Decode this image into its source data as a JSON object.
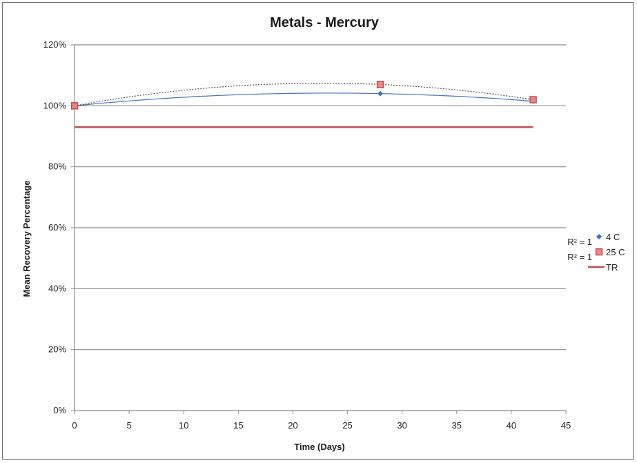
{
  "chart_data": {
    "type": "scatter",
    "title": "Metals - Mercury",
    "xlabel": "Time (Days)",
    "ylabel": "Mean Recovery Percentage",
    "xlim": [
      0,
      45
    ],
    "ylim": [
      0,
      1.2
    ],
    "xticks": [
      0,
      5,
      10,
      15,
      20,
      25,
      30,
      35,
      40,
      45
    ],
    "yticks": [
      0,
      0.2,
      0.4,
      0.6,
      0.8,
      1.0,
      1.2
    ],
    "ytick_labels": [
      "0%",
      "20%",
      "40%",
      "60%",
      "80%",
      "100%",
      "120%"
    ],
    "grid": "horizontal",
    "legend_position": "right",
    "series": [
      {
        "name": "4 C",
        "marker": "diamond",
        "color": "#4472c4",
        "x": [
          0,
          28,
          42
        ],
        "y": [
          1.0,
          1.04,
          1.015
        ],
        "trendline": {
          "type": "polynomial",
          "color": "#4472c4",
          "style": "solid",
          "r2_label": "R² = 1"
        }
      },
      {
        "name": "25 C",
        "marker": "square",
        "color": "#c0504d",
        "x": [
          0,
          28,
          42
        ],
        "y": [
          1.0,
          1.07,
          1.02
        ],
        "trendline": {
          "type": "polynomial",
          "color": "#555555",
          "style": "dotted",
          "r2_label": "R² = 1"
        }
      },
      {
        "name": "TR",
        "marker": "line",
        "color": "#c0504d",
        "x": [
          0,
          42
        ],
        "y": [
          0.93,
          0.93
        ]
      }
    ]
  }
}
